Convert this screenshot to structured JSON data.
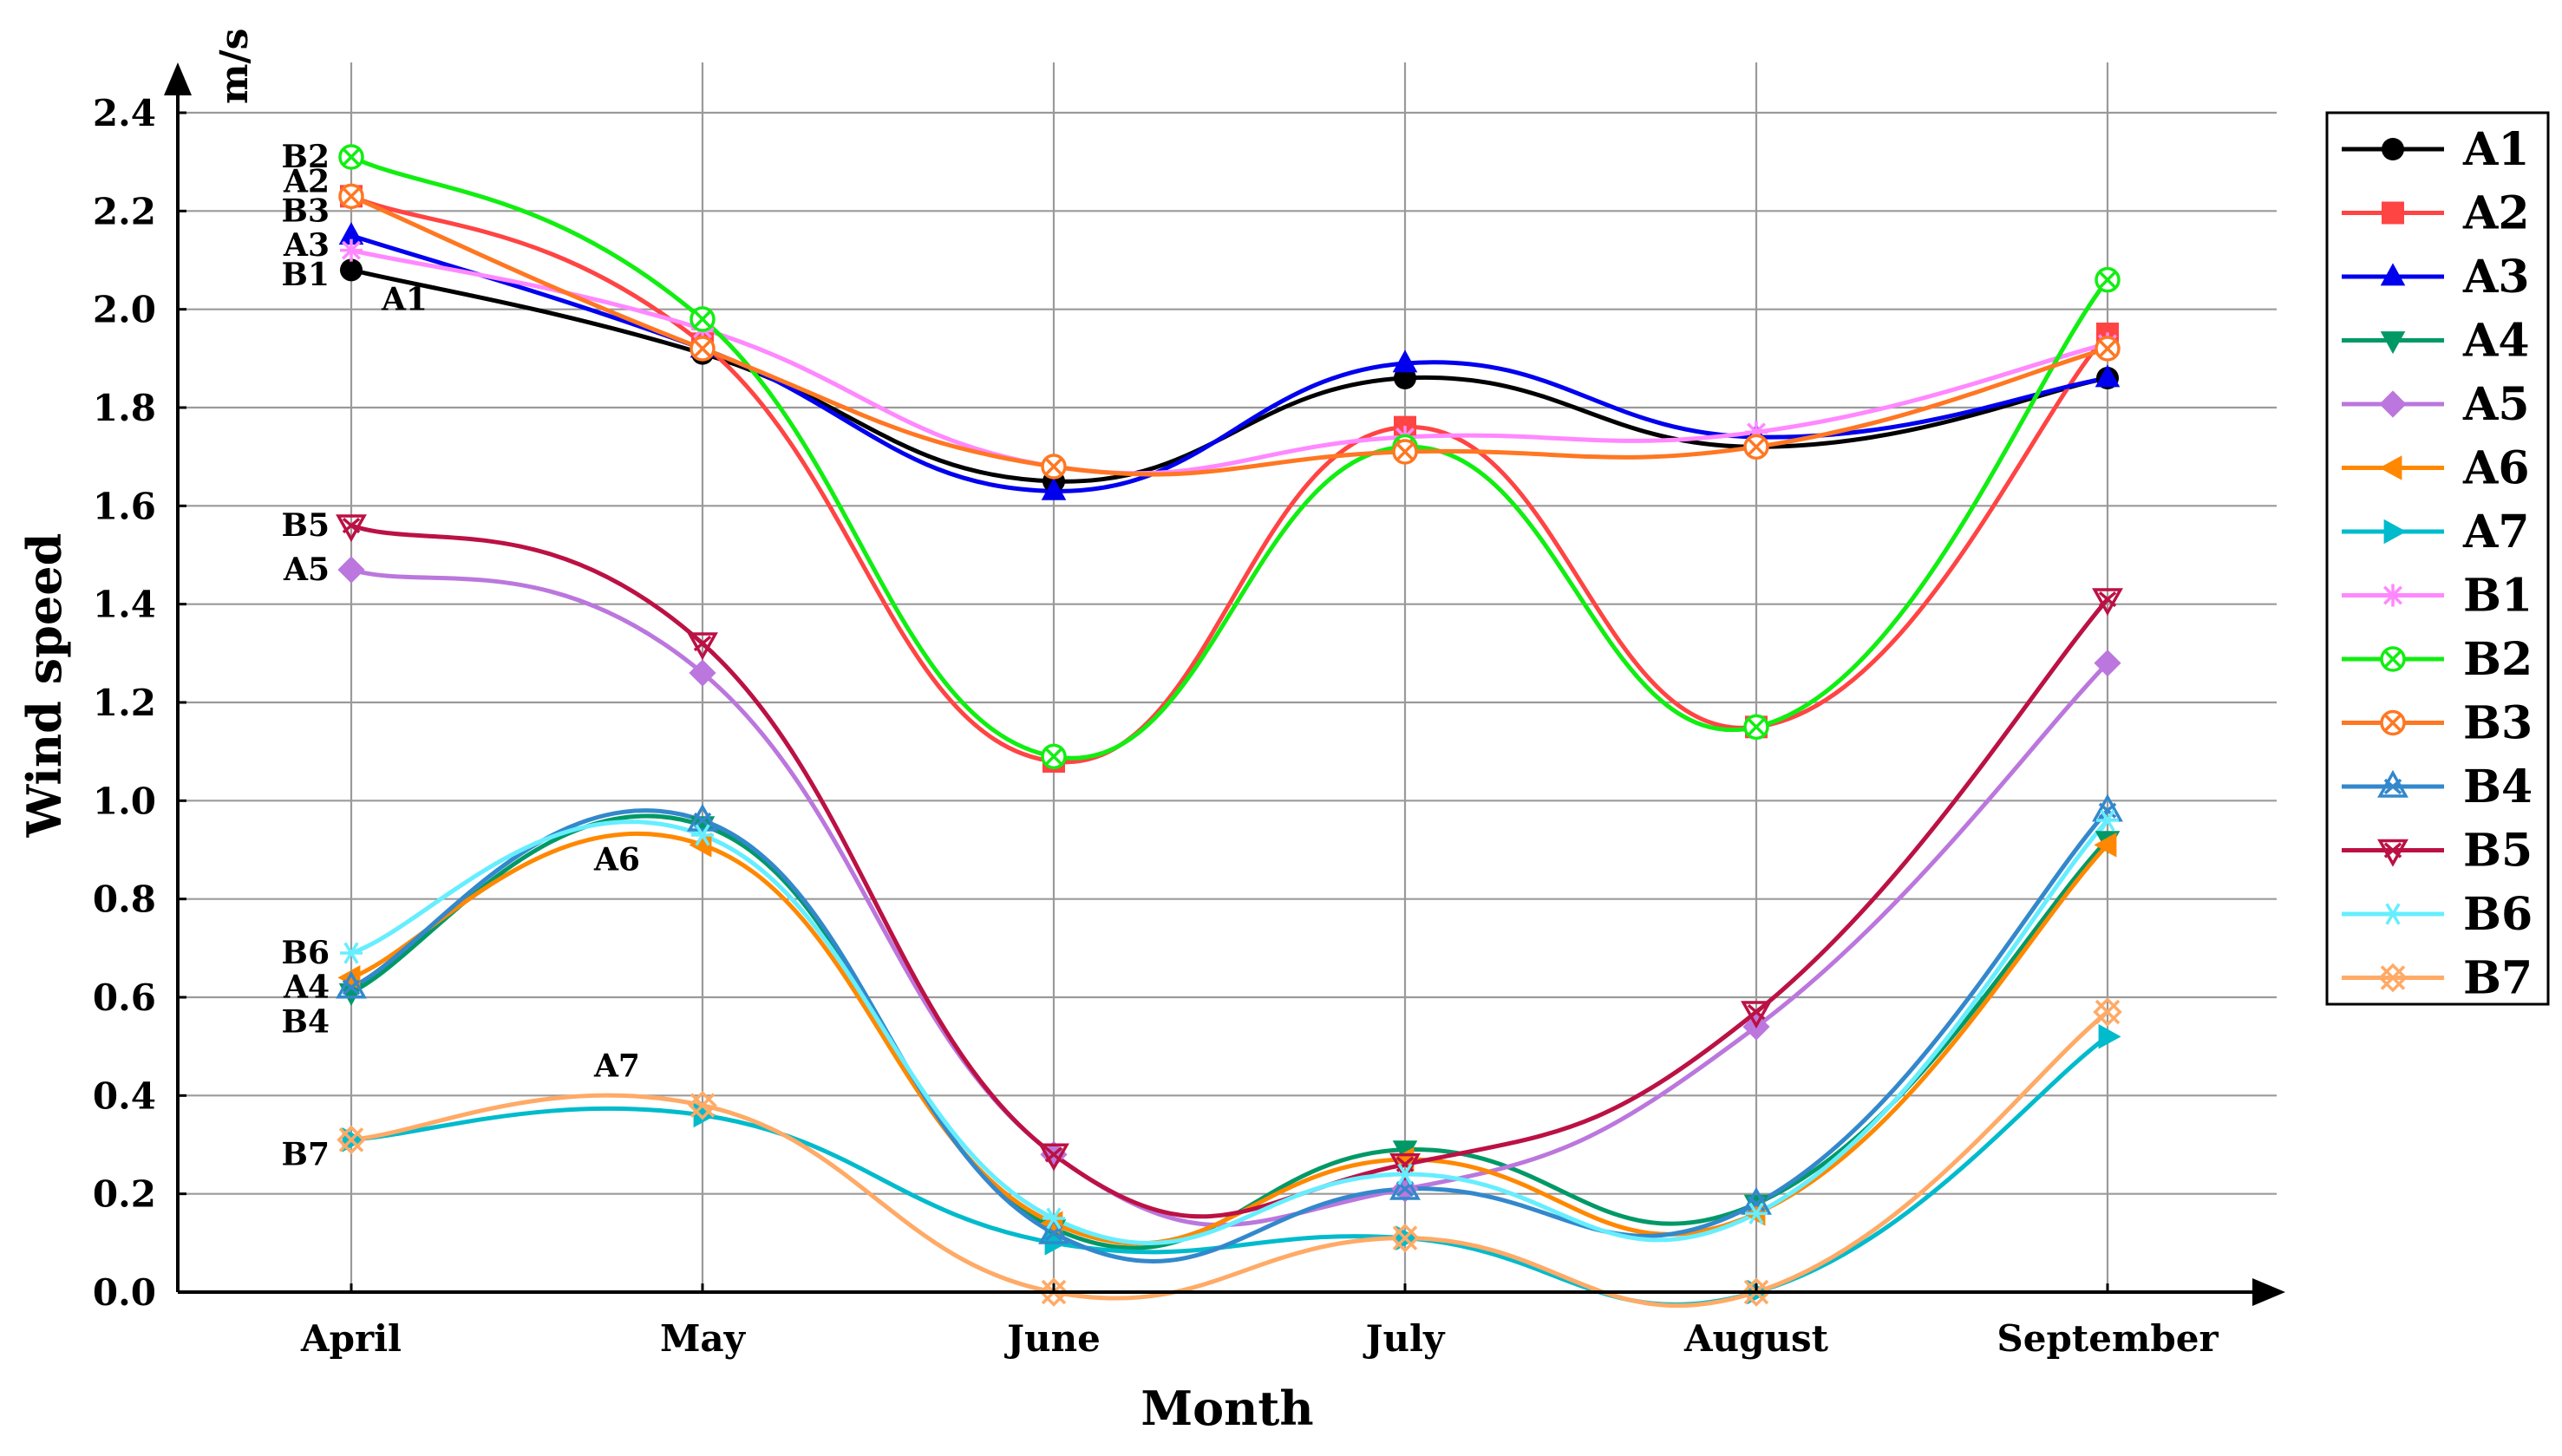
{
  "chart_data": {
    "type": "line",
    "categories": [
      "April",
      "May",
      "June",
      "July",
      "August",
      "September"
    ],
    "xlabel": "Month",
    "ylabel": "Wind speed",
    "unit": "m/s",
    "ylim": [
      0,
      2.4
    ],
    "yticks": [
      "0.0",
      "0.2",
      "0.4",
      "0.6",
      "0.8",
      "1.0",
      "1.2",
      "1.4",
      "1.6",
      "1.8",
      "2.0",
      "2.2",
      "2.4"
    ],
    "grid": true,
    "legend_position": "right",
    "series": [
      {
        "name": "A1",
        "color": "#000000",
        "marker": "circle",
        "values": [
          2.08,
          1.91,
          1.65,
          1.86,
          1.72,
          1.86
        ]
      },
      {
        "name": "A2",
        "color": "#ff4444",
        "marker": "square",
        "values": [
          2.23,
          1.93,
          1.08,
          1.76,
          1.15,
          1.95
        ]
      },
      {
        "name": "A3",
        "color": "#0000ee",
        "marker": "triangle-up",
        "values": [
          2.15,
          1.92,
          1.63,
          1.89,
          1.74,
          1.86
        ]
      },
      {
        "name": "A4",
        "color": "#009966",
        "marker": "triangle-down",
        "values": [
          0.61,
          0.95,
          0.13,
          0.29,
          0.18,
          0.92
        ]
      },
      {
        "name": "A5",
        "color": "#bb77dd",
        "marker": "diamond",
        "values": [
          1.47,
          1.26,
          0.28,
          0.21,
          0.54,
          1.28
        ]
      },
      {
        "name": "A6",
        "color": "#ff8800",
        "marker": "triangle-left",
        "values": [
          0.64,
          0.91,
          0.14,
          0.27,
          0.16,
          0.91
        ]
      },
      {
        "name": "A7",
        "color": "#00bbcc",
        "marker": "triangle-right",
        "values": [
          0.31,
          0.36,
          0.1,
          0.11,
          0.0,
          0.52
        ]
      },
      {
        "name": "B1",
        "color": "#ff88ff",
        "marker": "star",
        "values": [
          2.12,
          1.96,
          1.68,
          1.74,
          1.75,
          1.93
        ]
      },
      {
        "name": "B2",
        "color": "#11ee11",
        "marker": "circle-x",
        "values": [
          2.31,
          1.98,
          1.09,
          1.72,
          1.15,
          2.06
        ]
      },
      {
        "name": "B3",
        "color": "#ff7722",
        "marker": "circle-x",
        "values": [
          2.23,
          1.92,
          1.68,
          1.71,
          1.72,
          1.92
        ]
      },
      {
        "name": "B4",
        "color": "#3388cc",
        "marker": "triangle-x",
        "values": [
          0.62,
          0.96,
          0.12,
          0.21,
          0.18,
          0.98
        ]
      },
      {
        "name": "B5",
        "color": "#bb1144",
        "marker": "triangle-down-x",
        "values": [
          1.56,
          1.32,
          0.28,
          0.26,
          0.57,
          1.41
        ]
      },
      {
        "name": "B6",
        "color": "#66eeff",
        "marker": "asterisk",
        "values": [
          0.69,
          0.93,
          0.15,
          0.24,
          0.16,
          0.96
        ]
      },
      {
        "name": "B7",
        "color": "#ffaa66",
        "marker": "x-diamond",
        "values": [
          0.31,
          0.38,
          0.0,
          0.11,
          0.0,
          0.57
        ]
      }
    ],
    "annotations": [
      {
        "text": "B2",
        "month": "April",
        "value": 2.31,
        "side": "left"
      },
      {
        "text": "A2",
        "month": "April",
        "value": 2.26,
        "side": "left"
      },
      {
        "text": "B3",
        "month": "April",
        "value": 2.2,
        "side": "left"
      },
      {
        "text": "A3",
        "month": "April",
        "value": 2.13,
        "side": "left"
      },
      {
        "text": "B1",
        "month": "April",
        "value": 2.07,
        "side": "left"
      },
      {
        "text": "A1",
        "month": "April",
        "value": 2.02,
        "side": "right"
      },
      {
        "text": "B5",
        "month": "April",
        "value": 1.56,
        "side": "left"
      },
      {
        "text": "A5",
        "month": "April",
        "value": 1.47,
        "side": "left"
      },
      {
        "text": "A6",
        "month": "April",
        "value": 0.88,
        "side": "far-right"
      },
      {
        "text": "B6",
        "month": "April",
        "value": 0.69,
        "side": "left"
      },
      {
        "text": "A4",
        "month": "April",
        "value": 0.62,
        "side": "left"
      },
      {
        "text": "B4",
        "month": "April",
        "value": 0.55,
        "side": "left"
      },
      {
        "text": "A7",
        "month": "April",
        "value": 0.46,
        "side": "far-right"
      },
      {
        "text": "B7",
        "month": "April",
        "value": 0.28,
        "side": "left"
      }
    ]
  }
}
